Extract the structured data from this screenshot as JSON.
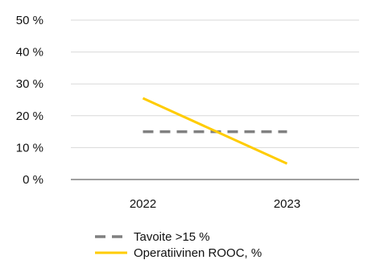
{
  "chart_data": {
    "type": "line",
    "title": "",
    "xlabel": "",
    "ylabel": "",
    "categories": [
      "2022",
      "2023"
    ],
    "y_ticks": [
      "0 %",
      "10 %",
      "20 %",
      "30 %",
      "40 %",
      "50 %"
    ],
    "ylim": [
      0,
      50
    ],
    "grid": true,
    "legend_position": "bottom",
    "series": [
      {
        "name": "Tavoite >15 %",
        "values": [
          15,
          15
        ],
        "color": "#808080",
        "style": "dashed"
      },
      {
        "name": "Operatiivinen  ROOC, %",
        "values": [
          25.5,
          5
        ],
        "color": "#FFCC00",
        "style": "solid"
      }
    ]
  }
}
